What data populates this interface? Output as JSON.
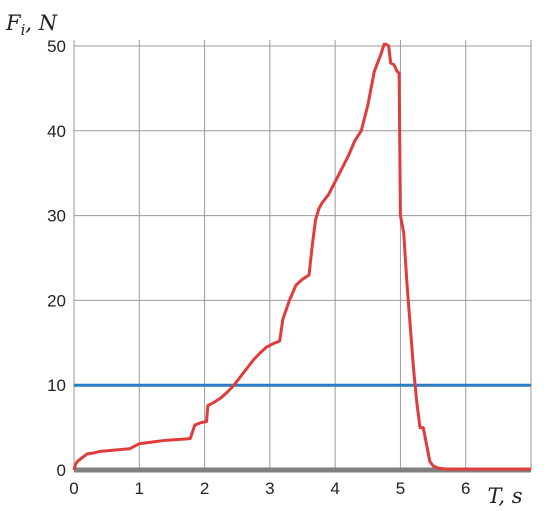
{
  "chart_data": {
    "type": "line",
    "title": "",
    "ylabel_main": "F",
    "ylabel_sub": "i",
    "ylabel_unit": ", N",
    "xlabel": "T, s",
    "xlim": [
      0,
      7
    ],
    "ylim": [
      0,
      50
    ],
    "x_ticks": [
      0,
      1,
      2,
      3,
      4,
      5,
      6
    ],
    "y_ticks": [
      0,
      10,
      20,
      30,
      40,
      50
    ],
    "x_tick_labels": [
      "0",
      "1",
      "2",
      "3",
      "4",
      "5",
      "6"
    ],
    "y_tick_labels": [
      "0",
      "10",
      "20",
      "30",
      "40",
      "50"
    ],
    "grid": true,
    "series": [
      {
        "color": "#e03c3c",
        "x": [
          0,
          0.02,
          0.05,
          0.1,
          0.15,
          0.2,
          0.3,
          0.4,
          0.55,
          0.7,
          0.85,
          1.0,
          1.2,
          1.4,
          1.6,
          1.78,
          1.85,
          1.95,
          2.03,
          2.05,
          2.15,
          2.25,
          2.35,
          2.45,
          2.55,
          2.65,
          2.75,
          2.85,
          2.95,
          3.05,
          3.15,
          3.2,
          3.3,
          3.4,
          3.5,
          3.6,
          3.65,
          3.7,
          3.75,
          3.8,
          3.9,
          4.0,
          4.1,
          4.2,
          4.3,
          4.4,
          4.5,
          4.55,
          4.6,
          4.65,
          4.7,
          4.75,
          4.78,
          4.82,
          4.85,
          4.9,
          4.95,
          4.98,
          5.0,
          5.05,
          5.1,
          5.15,
          5.2,
          5.25,
          5.3,
          5.35,
          5.4,
          5.45,
          5.5,
          5.55,
          5.6,
          5.7,
          6.0,
          6.5,
          7.0
        ],
        "y": [
          0,
          0.6,
          1.0,
          1.3,
          1.6,
          1.9,
          2.0,
          2.2,
          2.3,
          2.4,
          2.5,
          3.1,
          3.3,
          3.5,
          3.6,
          3.7,
          5.3,
          5.6,
          5.7,
          7.6,
          8.0,
          8.5,
          9.2,
          10.0,
          11.0,
          12.0,
          13.0,
          13.8,
          14.5,
          14.9,
          15.2,
          17.8,
          20.0,
          21.8,
          22.5,
          23.0,
          26.5,
          29.5,
          30.8,
          31.5,
          32.5,
          34.0,
          35.5,
          37.0,
          38.8,
          40.0,
          43.0,
          45.0,
          47.0,
          48.0,
          49.0,
          50.2,
          50.2,
          50.0,
          48.0,
          47.8,
          47.0,
          46.8,
          30.0,
          28.0,
          22.0,
          17.0,
          12.0,
          8.0,
          5.0,
          5.0,
          3.0,
          1.0,
          0.5,
          0.3,
          0.2,
          0.1,
          0.1,
          0.1,
          0.1
        ]
      },
      {
        "color": "#2b7cc0",
        "x": [
          0,
          7
        ],
        "y": [
          10,
          10
        ]
      },
      {
        "color": "#808080",
        "x": [
          0,
          7
        ],
        "y": [
          0,
          0
        ]
      }
    ]
  }
}
